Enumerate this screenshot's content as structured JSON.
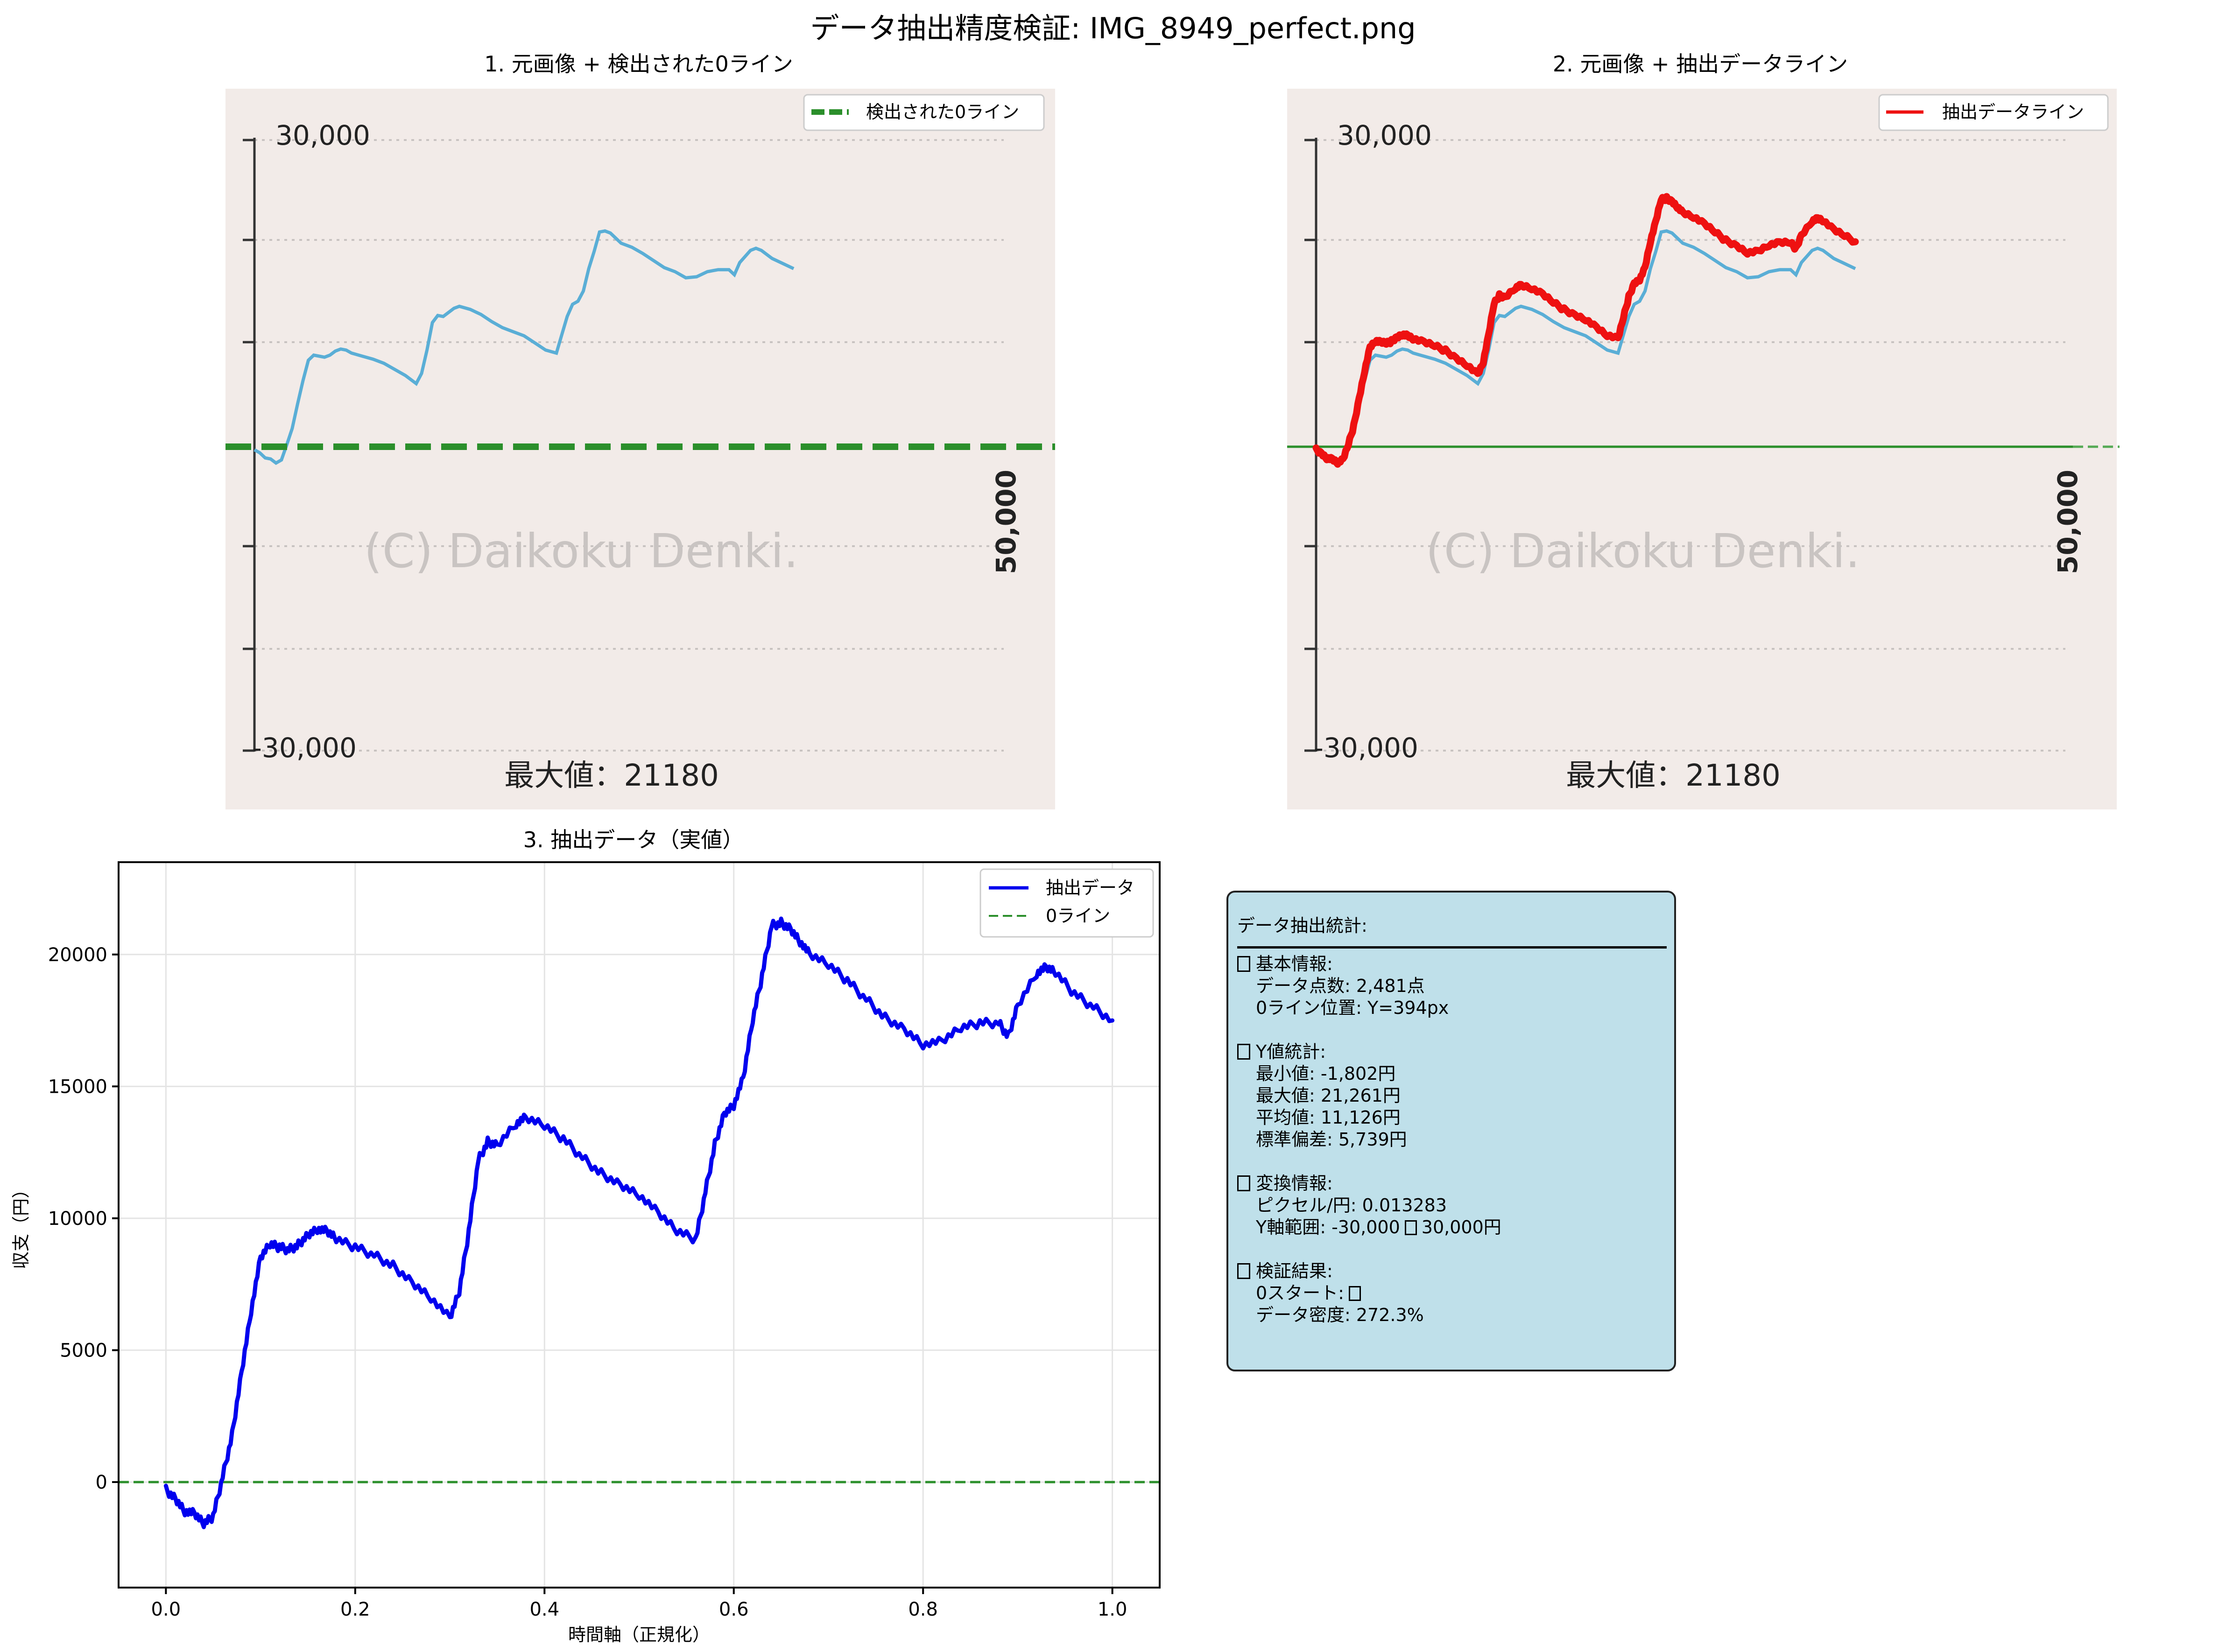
{
  "figure_title": "データ抽出精度検証: IMG_8949_perfect.png",
  "colors": {
    "image_bg": "#f2ebe8",
    "image_line": "#5aaed6",
    "zero_line_green": "#2b8f2b",
    "extracted_red": "#ee1111",
    "plot_blue": "#0000ee",
    "stats_bg": "#bfe0ea",
    "watermark": "#c9c4c2"
  },
  "panels": {
    "p1": {
      "title": "1. 元画像 + 検出された0ライン",
      "legend": "検出された0ライン",
      "img_top_label": "30,000",
      "img_bottom_label": "-30,000",
      "img_side_label": "50,000",
      "img_watermark": "(C) Daikoku Denki.",
      "img_max_label": "最大値：21180"
    },
    "p2": {
      "title": "2. 元画像 + 抽出データライン",
      "legend": "抽出データライン",
      "img_top_label": "30,000",
      "img_bottom_label": "-30,000",
      "img_side_label": "50,000",
      "img_watermark": "(C) Daikoku Denki.",
      "img_max_label": "最大値：21180"
    },
    "p3": {
      "title": "3. 抽出データ（実値）",
      "xlabel": "時間軸（正規化）",
      "ylabel": "収支（円）",
      "legend_series": "抽出データ",
      "legend_zero": "0ライン"
    }
  },
  "chart_data": [
    {
      "type": "line",
      "title": "3. 抽出データ（実値）",
      "xlabel": "時間軸（正規化）",
      "ylabel": "収支（円）",
      "xlim": [
        -0.05,
        1.05
      ],
      "ylim": [
        -4000,
        23500
      ],
      "xticks": [
        "0.0",
        "0.2",
        "0.4",
        "0.6",
        "0.8",
        "1.0"
      ],
      "yticks": [
        "0",
        "5000",
        "10000",
        "15000",
        "20000"
      ],
      "grid": true,
      "legend_position": "top-right",
      "series": [
        {
          "name": "抽出データ",
          "color": "#0000ee",
          "x": [
            0.0,
            0.01,
            0.02,
            0.03,
            0.04,
            0.05,
            0.06,
            0.07,
            0.08,
            0.09,
            0.1,
            0.11,
            0.12,
            0.13,
            0.14,
            0.15,
            0.16,
            0.17,
            0.18,
            0.2,
            0.22,
            0.24,
            0.26,
            0.28,
            0.3,
            0.31,
            0.32,
            0.33,
            0.34,
            0.35,
            0.37,
            0.38,
            0.4,
            0.42,
            0.44,
            0.46,
            0.48,
            0.5,
            0.52,
            0.54,
            0.56,
            0.57,
            0.58,
            0.59,
            0.6,
            0.61,
            0.62,
            0.63,
            0.64,
            0.65,
            0.66,
            0.67,
            0.68,
            0.7,
            0.72,
            0.74,
            0.76,
            0.78,
            0.8,
            0.82,
            0.84,
            0.86,
            0.88,
            0.89,
            0.9,
            0.92,
            0.93,
            0.94,
            0.96,
            0.98,
            1.0
          ],
          "y": [
            -300,
            -600,
            -1100,
            -1200,
            -1600,
            -1300,
            200,
            1800,
            4200,
            6500,
            8500,
            9000,
            8900,
            8800,
            9000,
            9400,
            9600,
            9500,
            9200,
            8900,
            8600,
            8200,
            7600,
            7000,
            6200,
            7200,
            9500,
            12200,
            12900,
            12800,
            13600,
            13800,
            13500,
            13000,
            12300,
            11700,
            11300,
            10900,
            10200,
            9500,
            9200,
            11000,
            12800,
            14000,
            14300,
            15300,
            17500,
            19200,
            21100,
            21200,
            21000,
            20500,
            20000,
            19600,
            19000,
            18300,
            17600,
            17200,
            16600,
            16700,
            17200,
            17400,
            17400,
            16900,
            18100,
            19300,
            19500,
            19300,
            18500,
            18000,
            17500
          ]
        },
        {
          "name": "0ライン",
          "color": "#2b8f2b",
          "x": [
            -0.05,
            1.05
          ],
          "y": [
            0,
            0
          ]
        }
      ]
    }
  ],
  "stats": {
    "title": "データ抽出統計:",
    "basic_head": "基本情報:",
    "points": "データ点数: 2,481点",
    "zero_pos": "0ライン位置: Y=394px",
    "y_head": "Y値統計:",
    "min": "最小値: -1,802円",
    "max": "最大値: 21,261円",
    "mean": "平均値: 11,126円",
    "std": "標準偏差: 5,739円",
    "conv_head": "変換情報:",
    "px_per_yen": "ピクセル/円: 0.013283",
    "yrange_start": "Y軸範囲: -30,000",
    "yrange_end": "30,000円",
    "verify_head": "検証結果:",
    "zero_start": "0スタート:",
    "density": "データ密度: 272.3%"
  }
}
